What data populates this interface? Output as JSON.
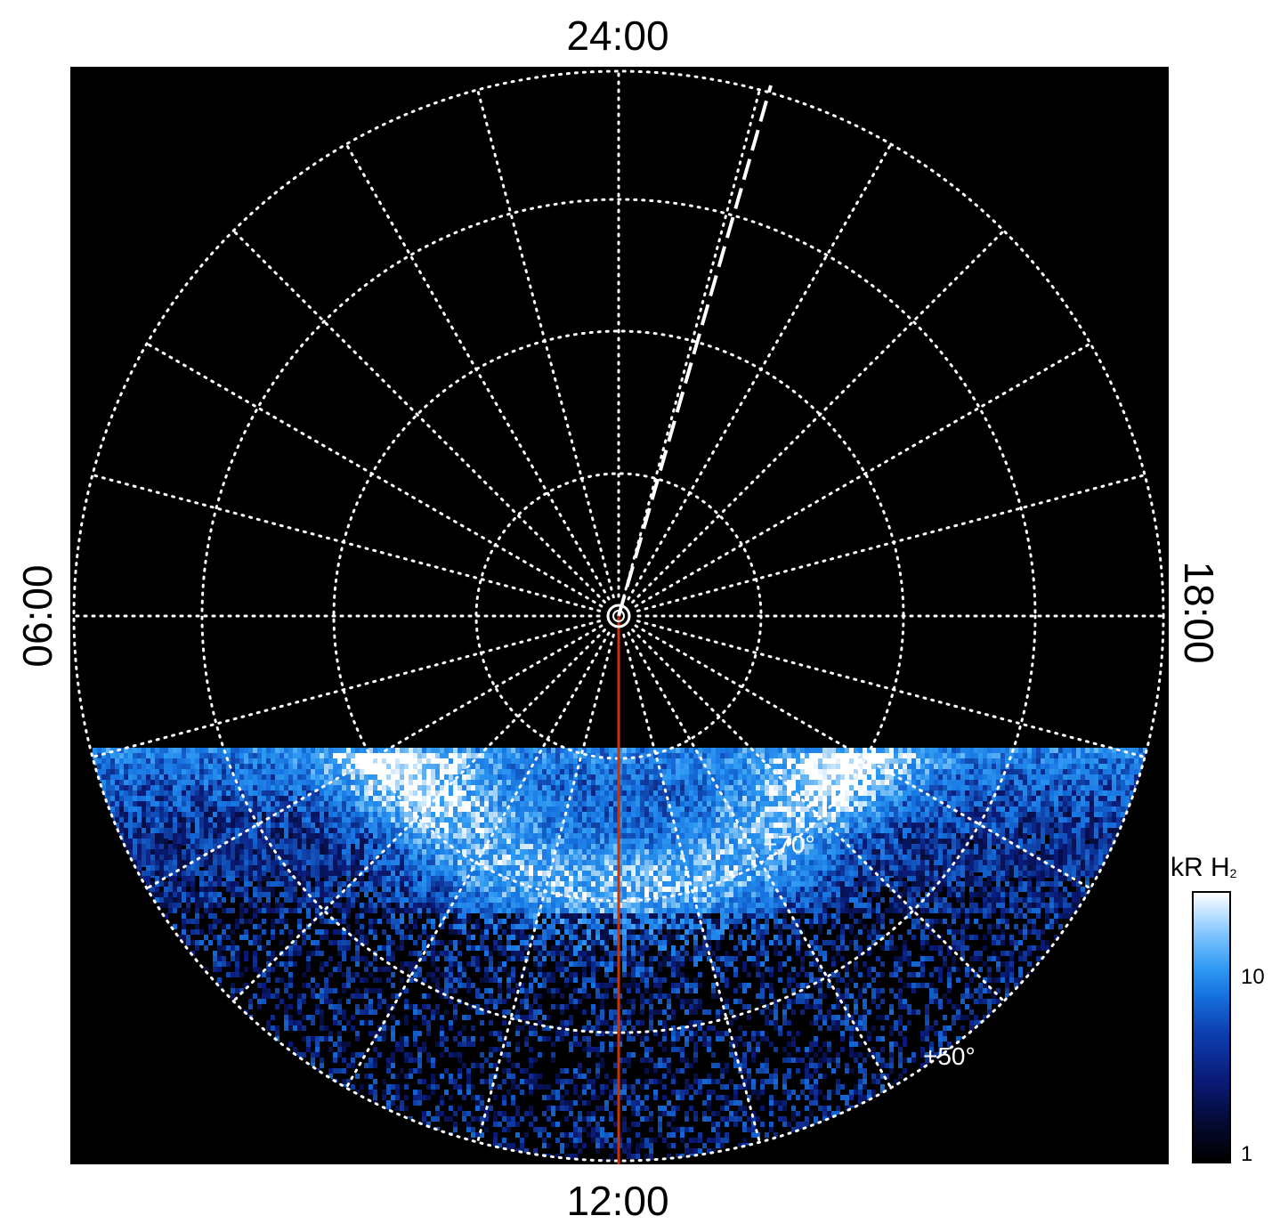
{
  "local_time_labels": {
    "top": "24:00",
    "bottom": "12:00",
    "left": "06:00",
    "right": "18:00"
  },
  "latitude_labels": [
    "+70°",
    "+50°"
  ],
  "colorbar": {
    "label_main": "kR H",
    "label_sub": "2",
    "ticks": [
      "10",
      "1"
    ],
    "scale": "log",
    "colormap": [
      "#000000",
      "#0a1a78",
      "#1672e0",
      "#2f9af2",
      "#ffffff"
    ]
  },
  "colors": {
    "background": "#000000",
    "grid": "#ffffff",
    "noon_meridian": "#cc3300",
    "dashed_line": "#ffffff"
  }
}
